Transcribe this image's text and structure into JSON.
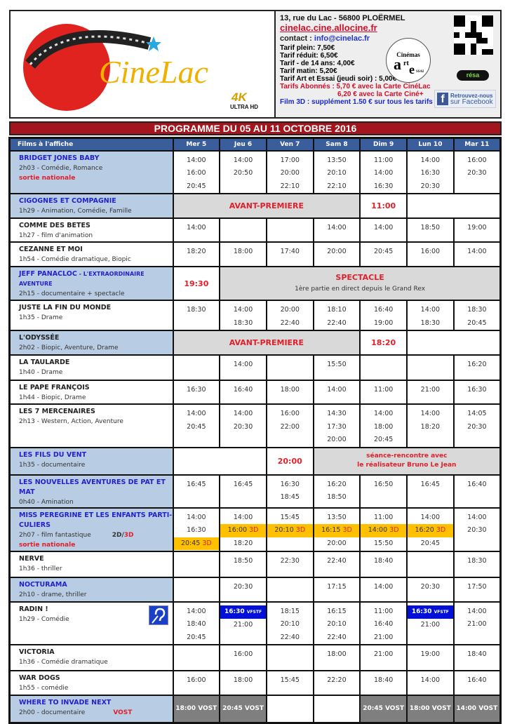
{
  "logo": {
    "text": "CineLac",
    "badge_4k": "4K",
    "badge_uhd": "ULTRA HD"
  },
  "info": {
    "address": "13, rue du Lac - 56800 PLOËRMEL",
    "website": "cinelac.cine.allocine.fr",
    "contact_label": "contact : ",
    "contact_email": "info@cinelac.fr",
    "tarifs": [
      "Tarif plein: 7,50€",
      "Tarif réduit: 6,50€",
      "Tarif - de 14 ans: 4,00€",
      "Tarif matin: 5,20€",
      "Tarif Art et Essai (jeudi soir) : 5,00€"
    ],
    "abonnes_1": "Tarifs Abonnés : 5,70 € avec la Carte CinéLac",
    "abonnes_2": "6,20 € avec la Carte Ciné+",
    "film3d": "Film 3D : supplément 1.50 € sur tous les tarifs",
    "art_essai_logo": "Association Française des Cinémas Art et Essai",
    "resa": "résa",
    "facebook_small": "Retrouvez-nous",
    "facebook": "sur Facebook"
  },
  "programme_title": "PROGRAMME DU 05 AU 11 OCTOBRE 2016",
  "table": {
    "first_header": "Films à l'affiche",
    "days": [
      "Mer 5",
      "Jeu 6",
      "Ven 7",
      "Sam 8",
      "Dim 9",
      "Lun 10",
      "Mar 11"
    ],
    "films": [
      {
        "title": "BRIDGET JONES BABY",
        "info": "2h03 - Comédie, Romance",
        "extra": "sortie nationale",
        "blue": true,
        "cells": [
          {
            "t": [
              "14:00",
              "16:00",
              "20:45"
            ]
          },
          {
            "t": [
              "14:00",
              "20:50"
            ]
          },
          {
            "t": [
              "17:00",
              "20:00",
              "22:10"
            ]
          },
          {
            "t": [
              "13:50",
              "20:10",
              "22:10"
            ]
          },
          {
            "t": [
              "11:00",
              "14:00",
              "16:30"
            ]
          },
          {
            "t": [
              "14:00",
              "16:30",
              "20:30"
            ]
          },
          {
            "t": [
              "16:00",
              "20:30"
            ]
          }
        ]
      },
      {
        "title": "CIGOGNES ET COMPAGNIE",
        "info": "1h29 - Animation, Comédie, Famille",
        "blue": true,
        "cells": [
          {
            "span": 4,
            "kind": "grey",
            "text": "AVANT-PREMIERE"
          },
          {
            "kind": "red",
            "text": "11:00"
          },
          {
            "span": 2,
            "t": []
          }
        ]
      },
      {
        "title": "COMME DES BETES",
        "info": "1h27 - film d'animation",
        "cells": [
          {
            "t": [
              "14:00"
            ]
          },
          {
            "t": []
          },
          {
            "t": []
          },
          {
            "t": [
              "14:00"
            ]
          },
          {
            "t": [
              "14:00"
            ]
          },
          {
            "t": [
              "18:50"
            ]
          },
          {
            "t": [
              "19:00"
            ]
          }
        ]
      },
      {
        "title": "CEZANNE ET MOI",
        "info": "1h54 - Comédie dramatique, Biopic",
        "cells": [
          {
            "t": [
              "18:20"
            ]
          },
          {
            "t": [
              "18:00"
            ]
          },
          {
            "t": [
              "17:40"
            ]
          },
          {
            "t": [
              "20:00"
            ]
          },
          {
            "t": [
              "20:45"
            ]
          },
          {
            "t": [
              "16:00"
            ]
          },
          {
            "t": [
              "14:00"
            ]
          }
        ]
      },
      {
        "title": "JEFF PANACLOC",
        "title_suffix": " - L'EXTRAORDINAIRE AVENTURE",
        "info": "2h15 - documentaire + spectacle",
        "blue": true,
        "cells": [
          {
            "kind": "red",
            "text": "19:30"
          },
          {
            "span": 6,
            "kind": "grey",
            "text": "SPECTACLE",
            "sub": "1ère partie en direct depuis le Grand Rex"
          }
        ]
      },
      {
        "title": "JUSTE LA FIN DU MONDE",
        "info": "1h35 - Drame",
        "cells": [
          {
            "t": [
              "18:30"
            ]
          },
          {
            "t": [
              "14:00",
              "18:30"
            ]
          },
          {
            "t": [
              "20:00",
              "22:40"
            ]
          },
          {
            "t": [
              "18:10",
              "22:40"
            ]
          },
          {
            "t": [
              "16:40",
              "19:00"
            ]
          },
          {
            "t": [
              "14:00",
              "18:30"
            ]
          },
          {
            "t": [
              "18:30",
              "20:45"
            ]
          }
        ]
      },
      {
        "title": "L'ODYSSÉE",
        "info": "2h02 - Biopic, Aventure, Drame",
        "blue": false,
        "hl": true,
        "cells": [
          {
            "span": 4,
            "kind": "grey",
            "text": "AVANT-PREMIERE"
          },
          {
            "kind": "red",
            "text": "18:20"
          },
          {
            "span": 2,
            "t": []
          }
        ]
      },
      {
        "title": "LA TAULARDE",
        "info": "1h40 - Drame",
        "cells": [
          {
            "t": []
          },
          {
            "t": [
              "14:00"
            ]
          },
          {
            "t": []
          },
          {
            "t": [
              "15:50"
            ]
          },
          {
            "t": []
          },
          {
            "t": []
          },
          {
            "t": [
              "16:20"
            ]
          }
        ]
      },
      {
        "title": "LE PAPE FRANÇOIS",
        "info": "1h44 - Biopic, Drame",
        "cells": [
          {
            "t": [
              "16:30"
            ]
          },
          {
            "t": [
              "16:40"
            ]
          },
          {
            "t": [
              "18:00"
            ]
          },
          {
            "t": [
              "14:00"
            ]
          },
          {
            "t": [
              "11:00"
            ]
          },
          {
            "t": [
              "21:00"
            ]
          },
          {
            "t": [
              "16:30"
            ]
          }
        ]
      },
      {
        "title": "LES 7 MERCENAIRES",
        "info": "2h13 - Western, Action, Aventure",
        "cells": [
          {
            "t": [
              "14:00",
              "20:45"
            ]
          },
          {
            "t": [
              "14:00",
              "20:30"
            ]
          },
          {
            "t": [
              "16:00",
              "22:00"
            ]
          },
          {
            "t": [
              "14:30",
              "17:30",
              "20:00"
            ]
          },
          {
            "t": [
              "14:00",
              "18:00",
              "20:45"
            ]
          },
          {
            "t": [
              "14:00",
              "18:20"
            ]
          },
          {
            "t": [
              "14:05",
              "20:30"
            ]
          }
        ]
      },
      {
        "title": "LES FILS DU VENT",
        "info": "1h35 - documentaire",
        "blue": true,
        "cells": [
          {
            "span": 2,
            "t": []
          },
          {
            "kind": "red",
            "text": "20:00"
          },
          {
            "span": 4,
            "kind": "grey small",
            "text": "séance-rencontre avec",
            "text2": "le réalisateur Bruno Le Jean"
          }
        ]
      },
      {
        "title": "LES NOUVELLES AVENTURES DE PAT ET MAT",
        "info": "0h40 - Amination",
        "blue": true,
        "cells": [
          {
            "t": [
              "16:45"
            ]
          },
          {
            "t": [
              "16:45"
            ]
          },
          {
            "t": [
              "16:30",
              "18:45"
            ]
          },
          {
            "t": [
              "16:20",
              "18:50"
            ]
          },
          {
            "t": [
              "16:50"
            ]
          },
          {
            "t": [
              "16:45"
            ]
          },
          {
            "t": [
              "16:40"
            ]
          }
        ]
      },
      {
        "title": "MISS PEREGRINE ET LES ENFANTS PARTI-CULIERS",
        "info": "2h07 - film fantastique",
        "format_2d": "2D/",
        "format_3d": "3D",
        "extra": "sortie nationale",
        "blue": true,
        "cells": [
          {
            "t": [
              "14:00",
              "16:30",
              {
                "v": "20:45",
                "tag": "3D"
              }
            ]
          },
          {
            "t": [
              "14:00",
              {
                "v": "16:00",
                "tag": "3D"
              },
              "18:20"
            ]
          },
          {
            "t": [
              "15:45",
              {
                "v": "20:10",
                "tag": "3D"
              }
            ]
          },
          {
            "t": [
              "13:50",
              {
                "v": "16:15",
                "tag": "3D"
              },
              "20:00"
            ]
          },
          {
            "t": [
              "11:00",
              {
                "v": "14:00",
                "tag": "3D"
              },
              "15:50"
            ]
          },
          {
            "t": [
              "14:00",
              {
                "v": "16:20",
                "tag": "3D"
              },
              "20:45"
            ]
          },
          {
            "t": [
              "14:00",
              "20:30"
            ]
          }
        ]
      },
      {
        "title": "NERVE",
        "info": "1h36 - thriller",
        "cells": [
          {
            "t": []
          },
          {
            "t": [
              "18:50"
            ]
          },
          {
            "t": [
              "22:30"
            ]
          },
          {
            "t": [
              "22:40"
            ]
          },
          {
            "t": [
              "18:40"
            ]
          },
          {
            "t": []
          },
          {
            "t": [
              "18:30"
            ]
          }
        ]
      },
      {
        "title": "NOCTURAMA",
        "info": "2h10 - drame, thriller",
        "blue": true,
        "cells": [
          {
            "t": []
          },
          {
            "t": [
              "20:30"
            ]
          },
          {
            "t": []
          },
          {
            "t": [
              "17:15"
            ]
          },
          {
            "t": [
              "14:00"
            ]
          },
          {
            "t": [
              "20:30"
            ]
          },
          {
            "t": [
              "17:50"
            ]
          }
        ]
      },
      {
        "title": "RADIN !",
        "info": "1h29 - Comédie",
        "hl": false,
        "vfstf_icon": "VFSTF",
        "cells": [
          {
            "t": [
              "14:00",
              "18:40",
              "20:45"
            ]
          },
          {
            "t": [
              {
                "v": "16:30",
                "tag": "VFSTF"
              },
              "21:00"
            ]
          },
          {
            "t": [
              "18:15",
              "20:10",
              "22:40"
            ]
          },
          {
            "t": [
              "16:15",
              "20:10",
              "22:40"
            ]
          },
          {
            "t": [
              "11:00",
              "16:40",
              "21:00"
            ]
          },
          {
            "t": [
              {
                "v": "16:30",
                "tag": "VFSTF"
              },
              "21:00"
            ]
          },
          {
            "t": [
              "14:00",
              "21:00"
            ]
          }
        ]
      },
      {
        "title": "VICTORIA",
        "info": "1h36 - Comédie dramatique",
        "cells": [
          {
            "t": []
          },
          {
            "t": [
              "16:00"
            ]
          },
          {
            "t": []
          },
          {
            "t": [
              "18:00"
            ]
          },
          {
            "t": [
              "21:00"
            ]
          },
          {
            "t": [
              "19:00"
            ]
          },
          {
            "t": [
              "18:40"
            ]
          }
        ]
      },
      {
        "title": "WAR DOGS",
        "info": "1h55 - comédie",
        "cells": [
          {
            "t": [
              "16:00"
            ]
          },
          {
            "t": [
              "18:00"
            ]
          },
          {
            "t": [
              "15:45"
            ]
          },
          {
            "t": [
              "22:20"
            ]
          },
          {
            "t": [
              "18:40"
            ]
          },
          {
            "t": [
              "14:00"
            ]
          },
          {
            "t": [
              "16:40"
            ]
          }
        ]
      },
      {
        "title": "WHERE TO INVADE NEXT",
        "info": "2h00 - documentaire",
        "vost": "VOST",
        "blue": true,
        "cells": [
          {
            "kind": "dark",
            "text": "18:00 VOST"
          },
          {
            "kind": "dark",
            "text": "20:45 VOST"
          },
          {
            "t": []
          },
          {
            "t": []
          },
          {
            "kind": "dark",
            "text": "20:45 VOST"
          },
          {
            "kind": "dark",
            "text": "18:00 VOST"
          },
          {
            "kind": "dark",
            "text": "14:00 VOST"
          }
        ]
      }
    ]
  },
  "colors": {
    "header_blue": "#3a5d9c",
    "title_bg": "#b8cce4",
    "title_blue": "#2222cc",
    "red": "#e0202a",
    "banner": "#a3151c",
    "3d": "#ffc000",
    "vfstf": "#0010d8",
    "vost": "#7f7f7f"
  }
}
